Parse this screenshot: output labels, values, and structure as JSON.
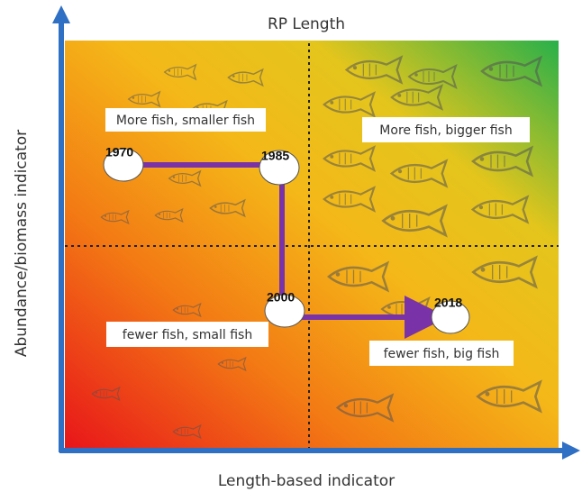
{
  "title": "RP Length",
  "axes": {
    "y": "Abundance/biomass indicator",
    "x": "Length-based indicator"
  },
  "quadrants": [
    {
      "label": "More fish, smaller fish"
    },
    {
      "label": "More fish, bigger fish"
    },
    {
      "label": "fewer fish, small fish"
    },
    {
      "label": "fewer fish, big fish"
    }
  ],
  "nodes": [
    {
      "label": "1970"
    },
    {
      "label": "1985"
    },
    {
      "label": "2000"
    },
    {
      "label": "2018"
    }
  ]
}
